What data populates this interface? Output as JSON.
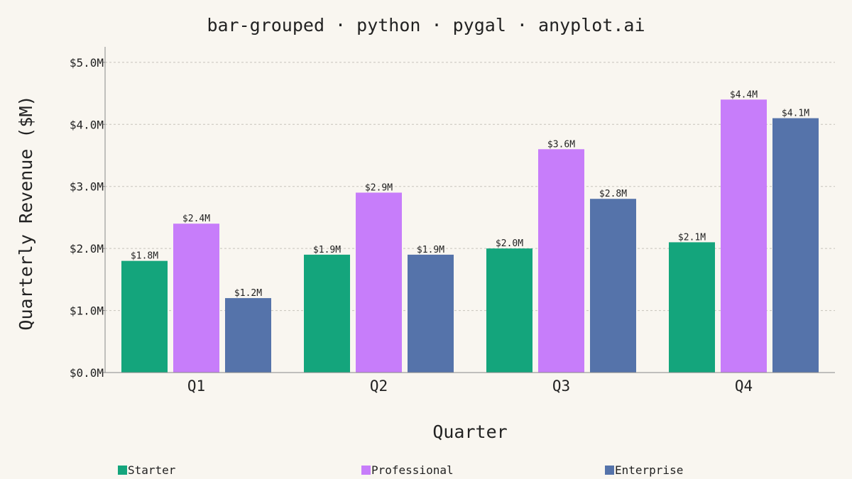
{
  "chart_data": {
    "type": "bar",
    "title": "bar-grouped · python · pygal · anyplot.ai",
    "xlabel": "Quarter",
    "ylabel": "Quarterly Revenue ($M)",
    "categories": [
      "Q1",
      "Q2",
      "Q3",
      "Q4"
    ],
    "series": [
      {
        "name": "Starter",
        "color": "#14A57C",
        "values": [
          1.8,
          1.9,
          2.0,
          2.1
        ],
        "labels": [
          "$1.8M",
          "$1.9M",
          "$2.0M",
          "$2.1M"
        ]
      },
      {
        "name": "Professional",
        "color": "#C77DFA",
        "values": [
          2.4,
          2.9,
          3.6,
          4.4
        ],
        "labels": [
          "$2.4M",
          "$2.9M",
          "$3.6M",
          "$4.4M"
        ]
      },
      {
        "name": "Enterprise",
        "color": "#5573AA",
        "values": [
          1.2,
          1.9,
          2.8,
          4.1
        ],
        "labels": [
          "$1.2M",
          "$1.9M",
          "$2.8M",
          "$4.1M"
        ]
      }
    ],
    "yticks": [
      0,
      1,
      2,
      3,
      4,
      5
    ],
    "ytick_labels": [
      "$0.0M",
      "$1.0M",
      "$2.0M",
      "$3.0M",
      "$4.0M",
      "$5.0M"
    ],
    "ylim": [
      0,
      5.25
    ],
    "grid": "horizontal dashed",
    "legend_position": "bottom"
  }
}
